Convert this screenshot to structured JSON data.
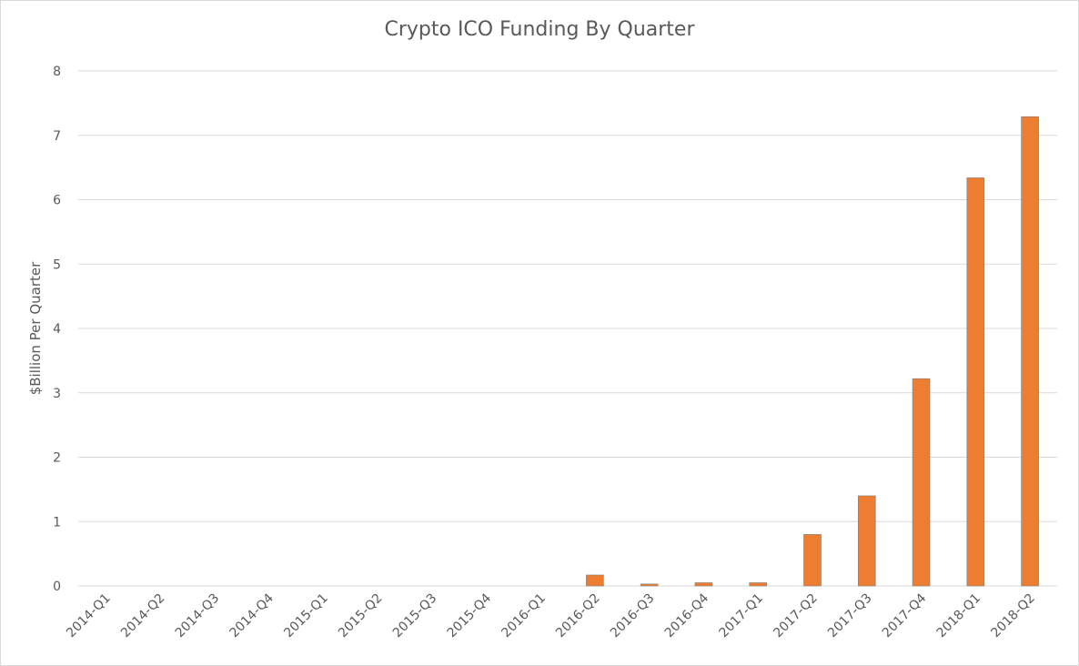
{
  "chart_data": {
    "type": "bar",
    "title": "Crypto ICO Funding By Quarter",
    "xlabel": "",
    "ylabel": "$Billion Per Quarter",
    "ylim": [
      0,
      8
    ],
    "yticks": [
      0,
      1,
      2,
      3,
      4,
      5,
      6,
      7,
      8
    ],
    "grid": true,
    "bar_color": "#ED7D31",
    "categories": [
      "2014-Q1",
      "2014-Q2",
      "2014-Q3",
      "2014-Q4",
      "2015-Q1",
      "2015-Q2",
      "2015-Q3",
      "2015-Q4",
      "2016-Q1",
      "2016-Q2",
      "2016-Q3",
      "2016-Q4",
      "2017-Q1",
      "2017-Q2",
      "2017-Q3",
      "2017-Q4",
      "2018-Q1",
      "2018-Q2"
    ],
    "values": [
      0,
      0,
      0,
      0,
      0,
      0,
      0,
      0,
      0,
      0.17,
      0.03,
      0.05,
      0.05,
      0.8,
      1.4,
      3.22,
      6.34,
      7.29
    ]
  }
}
